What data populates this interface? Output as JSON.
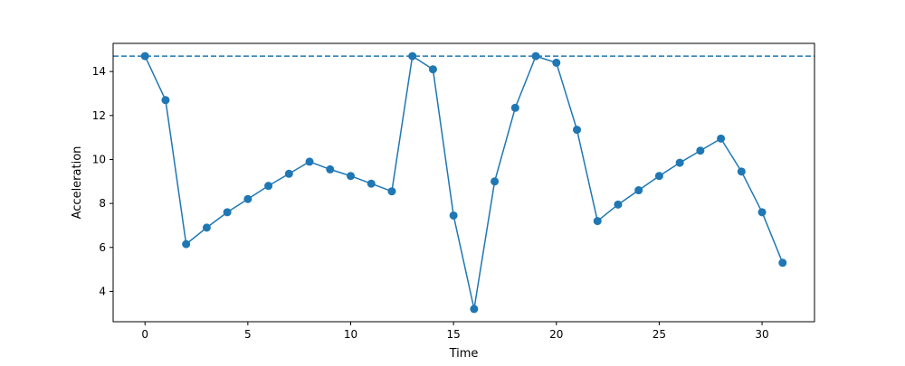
{
  "chart_data": {
    "type": "line",
    "title": "",
    "xlabel": "Time",
    "ylabel": "Acceleration",
    "xlim": [
      -1.55,
      32.55
    ],
    "ylim": [
      2.62,
      15.28
    ],
    "xticks": [
      0,
      5,
      10,
      15,
      20,
      25,
      30
    ],
    "yticks": [
      4,
      6,
      8,
      10,
      12,
      14
    ],
    "grid": false,
    "legend": "none",
    "series": [
      {
        "color": "#1f77b4",
        "marker": "circle",
        "x": [
          0,
          1,
          2,
          3,
          4,
          5,
          6,
          7,
          8,
          9,
          10,
          11,
          12,
          13,
          14,
          15,
          16,
          17,
          18,
          19,
          20,
          21,
          22,
          23,
          24,
          25,
          26,
          27,
          28,
          29,
          30,
          31
        ],
        "y": [
          14.7,
          12.7,
          6.15,
          6.9,
          7.6,
          8.2,
          8.8,
          9.35,
          9.9,
          9.55,
          9.25,
          8.9,
          8.55,
          14.7,
          14.1,
          7.45,
          3.2,
          9.0,
          12.35,
          14.7,
          14.4,
          11.35,
          7.2,
          7.95,
          8.6,
          9.25,
          9.85,
          10.4,
          10.95,
          9.45,
          7.6,
          5.3
        ]
      }
    ],
    "reference_lines": [
      {
        "orientation": "horizontal",
        "y": 14.7,
        "style": "dashed",
        "color": "#1f77b4"
      }
    ]
  }
}
